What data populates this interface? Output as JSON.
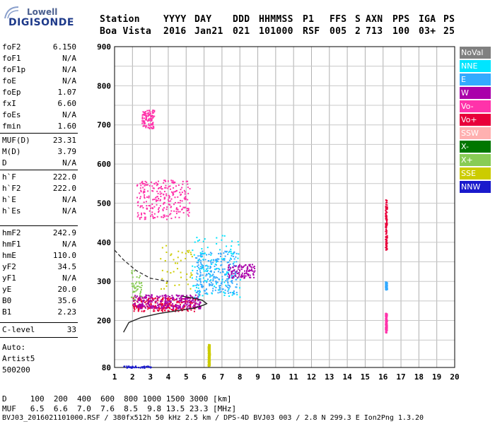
{
  "logo": {
    "line1": "Lowell",
    "line2": "DIGISONDE"
  },
  "header": {
    "row1": [
      "Station",
      "YYYY",
      "DAY",
      "DDD",
      "HHMMSS",
      "P1",
      "FFS",
      "S",
      "AXN",
      "PPS",
      "IGA",
      "PS"
    ],
    "row2": [
      "Boa Vista",
      "2016",
      "Jan21",
      "021",
      "101000",
      "RSF",
      "005",
      "2",
      "713",
      "100",
      "03+",
      "25"
    ]
  },
  "params": [
    {
      "name": "foF2",
      "value": "6.150"
    },
    {
      "name": "foF1",
      "value": "N/A"
    },
    {
      "name": "foF1p",
      "value": "N/A"
    },
    {
      "name": "foE",
      "value": "N/A"
    },
    {
      "name": "foEp",
      "value": "1.07"
    },
    {
      "name": "fxI",
      "value": "6.60"
    },
    {
      "name": "foEs",
      "value": "N/A"
    },
    {
      "name": "fmin",
      "value": "1.60"
    },
    {
      "name": "MUF(D)",
      "value": "23.31"
    },
    {
      "name": "M(D)",
      "value": "3.79"
    },
    {
      "name": "D",
      "value": "N/A"
    },
    {
      "name": "h`F",
      "value": "222.0"
    },
    {
      "name": "h`F2",
      "value": "222.0"
    },
    {
      "name": "h`E",
      "value": "N/A"
    },
    {
      "name": "h`Es",
      "value": "N/A"
    },
    {
      "name": "hmF2",
      "value": "242.9"
    },
    {
      "name": "hmF1",
      "value": "N/A"
    },
    {
      "name": "hmE",
      "value": "110.0"
    },
    {
      "name": "yF2",
      "value": "34.5"
    },
    {
      "name": "yF1",
      "value": "N/A"
    },
    {
      "name": "yE",
      "value": "20.0"
    },
    {
      "name": "B0",
      "value": "35.6"
    },
    {
      "name": "B1",
      "value": "2.23"
    },
    {
      "name": "C-level",
      "value": "33"
    }
  ],
  "auto": {
    "line1": "Auto:",
    "line2": "Artist5",
    "line3": "500200"
  },
  "legend": [
    {
      "label": "NoVal",
      "color": "#808080"
    },
    {
      "label": "NNE",
      "color": "#00e5ff"
    },
    {
      "label": "E",
      "color": "#33aaff"
    },
    {
      "label": "W",
      "color": "#aa00aa"
    },
    {
      "label": "Vo-",
      "color": "#ff33aa"
    },
    {
      "label": "Vo+",
      "color": "#e8003a"
    },
    {
      "label": "SSW",
      "color": "#ffb0b0"
    },
    {
      "label": "X-",
      "color": "#007700"
    },
    {
      "label": "X+",
      "color": "#88cc55"
    },
    {
      "label": "SSE",
      "color": "#cccc00"
    },
    {
      "label": "NNW",
      "color": "#1a1acc"
    }
  ],
  "footer": {
    "d_row": "D     100  200  400  600  800 1000 1500 3000 [km]",
    "muf_row": "MUF   6.5  6.6  7.0  7.6  8.5  9.8 13.5 23.3 [MHz]",
    "file_row": "BVJ03_2016021101000.RSF / 380fx512h 50 kHz 2.5 km / DPS-4D BVJ03 003 / 2.8 N 299.3 E Ion2Png 1.3.20"
  },
  "chart_data": {
    "type": "scatter",
    "title": "",
    "xlabel": "",
    "ylabel": "",
    "xlim": [
      1,
      20
    ],
    "ylim": [
      80,
      900
    ],
    "x_ticks": [
      1,
      2,
      3,
      4,
      5,
      6,
      7,
      8,
      9,
      10,
      11,
      12,
      13,
      14,
      15,
      16,
      17,
      18,
      19,
      20
    ],
    "y_ticks": [
      80,
      200,
      300,
      400,
      500,
      600,
      700,
      800,
      900
    ],
    "grid": true,
    "legend_position": "right",
    "regions": [
      {
        "mode": "Vo+",
        "x": [
          2.0,
          5.6
        ],
        "y": [
          225,
          260
        ],
        "density": "high"
      },
      {
        "mode": "W",
        "x": [
          2.0,
          5.8
        ],
        "y": [
          232,
          268
        ],
        "density": "high"
      },
      {
        "mode": "E",
        "x": [
          5.5,
          7.8
        ],
        "y": [
          270,
          380
        ],
        "density": "high"
      },
      {
        "mode": "NNE",
        "x": [
          5.3,
          8.0
        ],
        "y": [
          260,
          420
        ],
        "density": "medium"
      },
      {
        "mode": "W",
        "x": [
          7.3,
          8.8
        ],
        "y": [
          310,
          345
        ],
        "density": "medium"
      },
      {
        "mode": "Vo-",
        "x": [
          2.2,
          5.2
        ],
        "y": [
          460,
          560
        ],
        "density": "high"
      },
      {
        "mode": "Vo-",
        "x": [
          2.5,
          3.2
        ],
        "y": [
          690,
          740
        ],
        "density": "medium"
      },
      {
        "mode": "X+",
        "x": [
          1.9,
          2.5
        ],
        "y": [
          250,
          330
        ],
        "density": "low"
      },
      {
        "mode": "SSE",
        "x": [
          3.5,
          5.3
        ],
        "y": [
          280,
          400
        ],
        "density": "low"
      },
      {
        "mode": "SSE",
        "x": [
          6.2,
          6.3
        ],
        "y": [
          85,
          140
        ],
        "density": "high"
      },
      {
        "mode": "NNW",
        "x": [
          1.4,
          3.0
        ],
        "y": [
          80,
          85
        ],
        "density": "low"
      },
      {
        "mode": "Vo-",
        "x": [
          16.1,
          16.2
        ],
        "y": [
          170,
          220
        ],
        "density": "medium"
      },
      {
        "mode": "E",
        "x": [
          16.1,
          16.2
        ],
        "y": [
          280,
          300
        ],
        "density": "medium"
      },
      {
        "mode": "Vo+",
        "x": [
          16.1,
          16.2
        ],
        "y": [
          380,
          510
        ],
        "density": "medium"
      }
    ],
    "profile_curve": [
      [
        1.5,
        170
      ],
      [
        1.8,
        195
      ],
      [
        2.5,
        208
      ],
      [
        3.5,
        218
      ],
      [
        4.5,
        225
      ],
      [
        5.5,
        232
      ],
      [
        6.0,
        240
      ],
      [
        6.15,
        243
      ],
      [
        5.9,
        252
      ],
      [
        5.3,
        258
      ],
      [
        4.8,
        262
      ]
    ],
    "dashed_curve": [
      [
        1.0,
        380
      ],
      [
        1.5,
        355
      ],
      [
        2.2,
        328
      ],
      [
        3.0,
        308
      ],
      [
        4.0,
        300
      ]
    ]
  }
}
